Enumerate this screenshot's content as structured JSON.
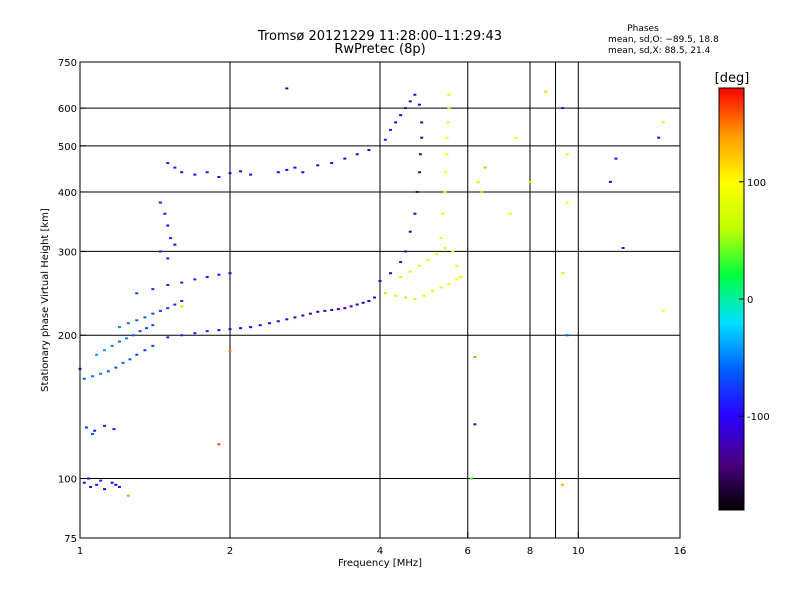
{
  "chart_data": {
    "type": "scatter",
    "title": "Tromsø 20121229 11:28:00–11:29:43",
    "subtitle": "RwPretec (8p)",
    "xlabel": "Frequency [MHz]",
    "ylabel": "Stationary phase Virtual Height [km]",
    "x_scale": "log2",
    "y_scale": "log",
    "xlim": [
      1,
      16
    ],
    "ylim": [
      75,
      750
    ],
    "x_ticks": [
      1,
      2,
      4,
      6,
      8,
      10,
      16
    ],
    "x_minor_ticks": [
      9
    ],
    "x_gridlines": [
      2,
      4,
      6,
      8,
      10
    ],
    "y_ticks": [
      75,
      100,
      200,
      300,
      400,
      500,
      600,
      750
    ],
    "y_gridlines": [
      100,
      200,
      300,
      400,
      500,
      600
    ],
    "grid": true,
    "stats": {
      "title": "Phases",
      "lines": [
        "mean, sd,O: −89.5, 18.8",
        "mean, sd,X:  88.5, 21.4"
      ]
    },
    "colorbar": {
      "label": "[deg]",
      "range": [
        -180,
        180
      ],
      "ticks": [
        100,
        0,
        -100
      ],
      "colors": [
        "#000000",
        "#4a0080",
        "#2a00ff",
        "#0060ff",
        "#00e0ff",
        "#00ff40",
        "#c0ff00",
        "#ffff00",
        "#ff9a00",
        "#ff0000"
      ]
    },
    "series": [
      {
        "points": [
          [
            1.02,
            98,
            -100
          ],
          [
            1.05,
            96,
            -105
          ],
          [
            1.08,
            97,
            -95
          ],
          [
            1.12,
            95,
            -110
          ],
          [
            1.16,
            98,
            -100
          ],
          [
            1.2,
            96,
            -95
          ],
          [
            1.04,
            100,
            -120
          ],
          [
            1.1,
            99,
            -90
          ],
          [
            1.18,
            97,
            -115
          ],
          [
            1.03,
            128,
            -80
          ],
          [
            1.07,
            126,
            -85
          ],
          [
            1.12,
            129,
            -90
          ],
          [
            1.17,
            127,
            -95
          ],
          [
            1.06,
            124,
            -60
          ],
          [
            1.02,
            162,
            -60
          ],
          [
            1.06,
            164,
            -55
          ],
          [
            1.1,
            166,
            -50
          ],
          [
            1.14,
            168,
            -60
          ],
          [
            1.18,
            171,
            -65
          ],
          [
            1.22,
            175,
            -58
          ],
          [
            1.26,
            178,
            -62
          ],
          [
            1.3,
            182,
            -70
          ],
          [
            1.35,
            186,
            -75
          ],
          [
            1.4,
            190,
            -72
          ],
          [
            1.08,
            182,
            -45
          ],
          [
            1.12,
            186,
            -40
          ],
          [
            1.16,
            190,
            -50
          ],
          [
            1.2,
            194,
            -55
          ],
          [
            1.24,
            197,
            -48
          ],
          [
            1.28,
            200,
            -60
          ],
          [
            1.32,
            204,
            -65
          ],
          [
            1.36,
            207,
            -70
          ],
          [
            1.4,
            210,
            -75
          ],
          [
            1.2,
            208,
            -50
          ],
          [
            1.25,
            212,
            -55
          ],
          [
            1.3,
            215,
            -60
          ],
          [
            1.35,
            218,
            -62
          ],
          [
            1.4,
            222,
            -70
          ],
          [
            1.45,
            225,
            -75
          ],
          [
            1.5,
            228,
            -80
          ],
          [
            1.55,
            232,
            -85
          ],
          [
            1.6,
            236,
            -90
          ],
          [
            1.3,
            245,
            -70
          ],
          [
            1.4,
            250,
            -80
          ],
          [
            1.5,
            255,
            -85
          ],
          [
            1.6,
            258,
            -90
          ],
          [
            1.7,
            262,
            -92
          ],
          [
            1.8,
            265,
            -95
          ],
          [
            1.9,
            268,
            -98
          ],
          [
            2.0,
            270,
            -100
          ],
          [
            1.5,
            198,
            -80
          ],
          [
            1.6,
            200,
            -85
          ],
          [
            1.7,
            202,
            -88
          ],
          [
            1.8,
            204,
            -90
          ],
          [
            1.9,
            205,
            -95
          ],
          [
            2.0,
            206,
            -98
          ],
          [
            2.1,
            207,
            -100
          ],
          [
            2.2,
            208,
            -105
          ],
          [
            2.3,
            210,
            -105
          ],
          [
            2.4,
            212,
            -110
          ],
          [
            2.5,
            214,
            -110
          ],
          [
            2.6,
            216,
            -115
          ],
          [
            2.7,
            218,
            -118
          ],
          [
            2.8,
            220,
            -115
          ],
          [
            2.9,
            222,
            -120
          ],
          [
            3.0,
            224,
            -120
          ],
          [
            3.1,
            225,
            -125
          ],
          [
            3.2,
            226,
            -125
          ],
          [
            3.3,
            227,
            -128
          ],
          [
            3.4,
            228,
            -130
          ],
          [
            3.5,
            230,
            -130
          ],
          [
            3.6,
            232,
            -128
          ],
          [
            3.7,
            234,
            -125
          ],
          [
            3.8,
            236,
            -120
          ],
          [
            3.9,
            240,
            -115
          ],
          [
            1.5,
            460,
            -90
          ],
          [
            1.55,
            450,
            -95
          ],
          [
            1.6,
            440,
            -100
          ],
          [
            1.7,
            435,
            -95
          ],
          [
            1.8,
            440,
            -92
          ],
          [
            1.9,
            430,
            -98
          ],
          [
            2.0,
            438,
            -100
          ],
          [
            2.1,
            442,
            -102
          ],
          [
            2.2,
            435,
            -98
          ],
          [
            2.5,
            440,
            -100
          ],
          [
            2.6,
            445,
            -105
          ],
          [
            2.7,
            450,
            -108
          ],
          [
            2.8,
            440,
            -110
          ],
          [
            3.0,
            455,
            -112
          ],
          [
            3.2,
            460,
            -115
          ],
          [
            3.4,
            470,
            -118
          ],
          [
            3.6,
            480,
            -112
          ],
          [
            3.8,
            490,
            -110
          ],
          [
            1.45,
            380,
            -90
          ],
          [
            1.5,
            340,
            -95
          ],
          [
            1.55,
            310,
            -100
          ],
          [
            1.5,
            290,
            -90
          ],
          [
            1.48,
            360,
            -92
          ],
          [
            1.52,
            320,
            -85
          ],
          [
            1.45,
            300,
            -88
          ],
          [
            4.1,
            515,
            -90
          ],
          [
            4.2,
            540,
            -95
          ],
          [
            4.3,
            560,
            -100
          ],
          [
            4.4,
            580,
            -105
          ],
          [
            4.5,
            600,
            -110
          ],
          [
            4.6,
            620,
            -105
          ],
          [
            4.7,
            640,
            -100
          ],
          [
            4.8,
            610,
            -115
          ],
          [
            4.0,
            260,
            -100
          ],
          [
            4.2,
            270,
            -105
          ],
          [
            4.4,
            285,
            -110
          ],
          [
            4.5,
            300,
            -115
          ],
          [
            4.6,
            330,
            -120
          ],
          [
            4.7,
            360,
            -125
          ],
          [
            4.75,
            400,
            -128
          ],
          [
            4.8,
            440,
            -130
          ],
          [
            4.82,
            480,
            -128
          ],
          [
            4.85,
            520,
            -125
          ],
          [
            4.85,
            560,
            -120
          ],
          [
            4.1,
            245,
            55
          ],
          [
            4.3,
            242,
            60
          ],
          [
            4.5,
            240,
            65
          ],
          [
            4.7,
            238,
            70
          ],
          [
            4.9,
            242,
            75
          ],
          [
            5.1,
            248,
            80
          ],
          [
            5.3,
            252,
            85
          ],
          [
            5.5,
            256,
            90
          ],
          [
            5.7,
            262,
            92
          ],
          [
            4.4,
            265,
            70
          ],
          [
            4.6,
            272,
            72
          ],
          [
            4.8,
            280,
            78
          ],
          [
            5.0,
            288,
            80
          ],
          [
            5.2,
            296,
            82
          ],
          [
            5.4,
            305,
            85
          ],
          [
            5.3,
            320,
            90
          ],
          [
            5.35,
            360,
            92
          ],
          [
            5.4,
            400,
            95
          ],
          [
            5.42,
            440,
            95
          ],
          [
            5.45,
            480,
            92
          ],
          [
            5.45,
            520,
            90
          ],
          [
            5.48,
            560,
            88
          ],
          [
            5.5,
            600,
            85
          ],
          [
            5.5,
            640,
            80
          ],
          [
            5.6,
            300,
            85
          ],
          [
            5.7,
            280,
            88
          ],
          [
            5.8,
            265,
            90
          ],
          [
            6.3,
            420,
            110
          ],
          [
            6.4,
            400,
            120
          ],
          [
            6.5,
            450,
            130
          ],
          [
            6.2,
            180,
            140
          ],
          [
            6.2,
            130,
            -130
          ],
          [
            6.1,
            100,
            30
          ],
          [
            7.3,
            360,
            90
          ],
          [
            7.5,
            520,
            100
          ],
          [
            8.0,
            420,
            110
          ],
          [
            8.6,
            650,
            120
          ],
          [
            9.3,
            600,
            -120
          ],
          [
            9.5,
            480,
            110
          ],
          [
            9.5,
            380,
            100
          ],
          [
            9.3,
            270,
            110
          ],
          [
            9.5,
            200,
            -60
          ],
          [
            9.3,
            97,
            130
          ],
          [
            11.6,
            420,
            -100
          ],
          [
            11.9,
            470,
            -110
          ],
          [
            12.3,
            305,
            -90
          ],
          [
            14.5,
            520,
            -100
          ],
          [
            14.8,
            560,
            110
          ],
          [
            14.8,
            225,
            100
          ],
          [
            2.6,
            660,
            -150
          ],
          [
            1.6,
            230,
            120
          ],
          [
            2.0,
            185,
            150
          ],
          [
            1.9,
            118,
            160
          ],
          [
            1.25,
            92,
            140
          ],
          [
            1.0,
            170,
            -100
          ]
        ]
      }
    ]
  }
}
